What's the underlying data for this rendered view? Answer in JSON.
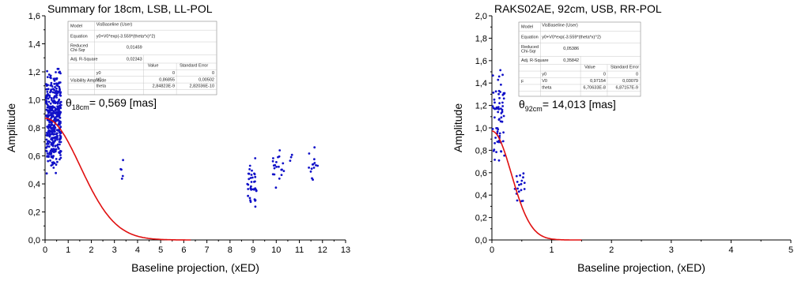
{
  "chart_data": [
    {
      "type": "scatter",
      "title": "Summary for 18cm, LSB, LL-POL",
      "xlabel": "Baseline projection, (xED)",
      "ylabel": "Amplitude",
      "xlim": [
        0,
        13
      ],
      "ylim": [
        0,
        1.6
      ],
      "x_ticks": [
        "0",
        "1",
        "2",
        "3",
        "4",
        "5",
        "6",
        "7",
        "8",
        "9",
        "10",
        "11",
        "12",
        "13"
      ],
      "y_ticks": [
        "0,0",
        "0,2",
        "0,4",
        "0,6",
        "0,8",
        "1,0",
        "1,2",
        "1,4",
        "1,6"
      ],
      "annotation": {
        "symbol": "θ",
        "subscript": "18cm",
        "text": "= 0,569 [mas]"
      },
      "fit_table": {
        "model_label": "Model",
        "model_value": "VisBaseline (User)",
        "equation_label": "Equation",
        "equation_value": "y0+V0*exp(-3.559*(theta*x)^2)",
        "chisq_label": "Reduced Chi-Sqr",
        "chisq_value": "0,01459",
        "r2_label": "Adj. R-Square",
        "r2_value": "0,02343",
        "value_header": "Value",
        "error_header": "Standard Error",
        "group_label": "Visibility Amplitude",
        "params": [
          {
            "name": "y0",
            "value": "0",
            "error": "0"
          },
          {
            "name": "V0",
            "value": "0,86855",
            "error": "0,00502"
          },
          {
            "name": "theta",
            "value": "2,84823E-9",
            "error": "2,82036E-10"
          }
        ]
      },
      "series": [
        {
          "kind": "points",
          "color": "#1010c8",
          "clusters": [
            {
              "x": [
                0.05,
                0.7
              ],
              "y": [
                0.45,
                1.25
              ],
              "n": 420
            },
            {
              "x": [
                3.2,
                3.45
              ],
              "y": [
                0.36,
                0.62
              ],
              "n": 5
            },
            {
              "x": [
                8.75,
                9.15
              ],
              "y": [
                0.23,
                0.6
              ],
              "n": 40
            },
            {
              "x": [
                9.85,
                10.35
              ],
              "y": [
                0.35,
                0.65
              ],
              "n": 20
            },
            {
              "x": [
                10.6,
                10.7
              ],
              "y": [
                0.48,
                0.67
              ],
              "n": 3
            },
            {
              "x": [
                11.35,
                11.8
              ],
              "y": [
                0.4,
                0.68
              ],
              "n": 14
            }
          ]
        },
        {
          "kind": "fit",
          "color": "#e01010",
          "y0": 0,
          "V0": 0.86855,
          "theta": 0.247,
          "x_range": [
            0,
            6.3
          ]
        }
      ]
    },
    {
      "type": "scatter",
      "title": "RAKS02AE, 92cm, USB, RR-POL",
      "xlabel": "Baseline projection, (xED)",
      "ylabel": "Amplitude",
      "xlim": [
        0,
        5
      ],
      "ylim": [
        0,
        2.0
      ],
      "x_ticks": [
        "0",
        "1",
        "2",
        "3",
        "4",
        "5"
      ],
      "y_ticks": [
        "0,0",
        "0,2",
        "0,4",
        "0,6",
        "0,8",
        "1,0",
        "1,2",
        "1,4",
        "1,6",
        "1,8",
        "2,0"
      ],
      "annotation": {
        "symbol": "θ",
        "subscript": "92cm",
        "text": "= 14,013 [mas]"
      },
      "fit_table": {
        "model_label": "Model",
        "model_value": "VisBaseline (User)",
        "equation_label": "Equation",
        "equation_value": "y0+V0*exp(-3.559*(theta*x)^2)",
        "chisq_label": "Reduced Chi-Sqr",
        "chisq_value": "0,05386",
        "r2_label": "Adj. R-Square",
        "r2_value": "0,35842",
        "value_header": "Value",
        "error_header": "Standard Error",
        "group_label": "F",
        "params": [
          {
            "name": "y0",
            "value": "0",
            "error": "0"
          },
          {
            "name": "V0",
            "value": "0,97154",
            "error": "0,03079"
          },
          {
            "name": "theta",
            "value": "6,70633E-8",
            "error": "6,87157E-9"
          }
        ]
      },
      "series": [
        {
          "kind": "points",
          "color": "#1010c8",
          "clusters": [
            {
              "x": [
                0.0,
                0.22
              ],
              "y": [
                0.62,
                1.68
              ],
              "n": 70
            },
            {
              "x": [
                0.38,
                0.55
              ],
              "y": [
                0.3,
                0.67
              ],
              "n": 18
            }
          ]
        },
        {
          "kind": "fit",
          "color": "#e01010",
          "y0": 0,
          "V0": 0.97154,
          "theta": 1.15,
          "x_range": [
            0,
            1.5
          ]
        }
      ]
    }
  ]
}
